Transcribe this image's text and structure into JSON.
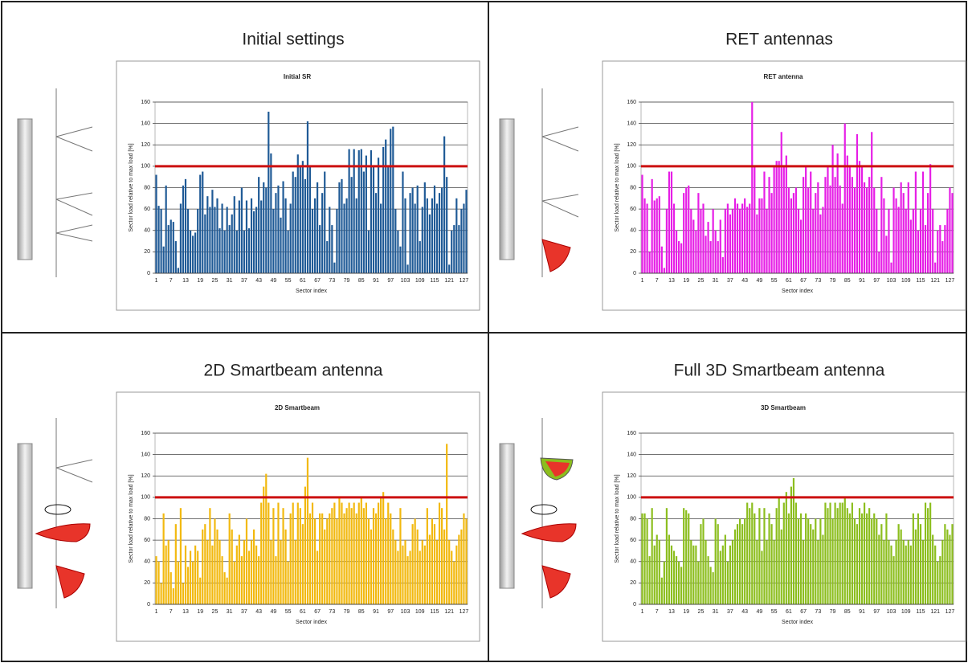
{
  "chart_data": [
    {
      "type": "bar",
      "heading": "Initial settings",
      "title": "Initial SR",
      "x_label": "Sector index",
      "y_label": "Sector load relative to max load [%]",
      "color": "#1f5a96",
      "grid": true,
      "threshold": 100,
      "threshold_color": "#cc1111",
      "ylim": [
        0,
        160
      ],
      "yticks": [
        0,
        20,
        40,
        60,
        80,
        100,
        120,
        140,
        160
      ],
      "categories": [
        "1",
        null,
        null,
        null,
        null,
        null,
        "7",
        null,
        null,
        null,
        null,
        null,
        "13",
        null,
        null,
        null,
        null,
        null,
        "19",
        null,
        null,
        null,
        null,
        null,
        "25",
        null,
        null,
        null,
        null,
        null,
        "31",
        null,
        null,
        null,
        null,
        null,
        "37",
        null,
        null,
        null,
        null,
        null,
        "43",
        null,
        null,
        null,
        null,
        null,
        "49",
        null,
        null,
        null,
        null,
        null,
        "55",
        null,
        null,
        null,
        null,
        null,
        "61",
        null,
        null,
        null,
        null,
        null,
        "67",
        null,
        null,
        null,
        null,
        null,
        "73",
        null,
        null,
        null,
        null,
        null,
        "79",
        null,
        null,
        null,
        null,
        null,
        "85",
        null,
        null,
        null,
        null,
        null,
        "91",
        null,
        null,
        null,
        null,
        null,
        "97",
        null,
        null,
        null,
        null,
        null,
        "103",
        null,
        null,
        null,
        null,
        null,
        "109",
        null,
        null,
        null,
        null,
        null,
        "115",
        null,
        null,
        null,
        null,
        null,
        "121",
        null,
        null,
        null,
        null,
        null,
        "127",
        null
      ],
      "values": [
        92,
        63,
        60,
        25,
        82,
        45,
        50,
        48,
        30,
        5,
        65,
        82,
        88,
        60,
        40,
        35,
        38,
        60,
        92,
        95,
        55,
        72,
        62,
        78,
        62,
        70,
        42,
        65,
        40,
        62,
        45,
        55,
        72,
        40,
        68,
        80,
        40,
        68,
        42,
        70,
        58,
        62,
        90,
        68,
        85,
        80,
        151,
        112,
        60,
        75,
        82,
        52,
        86,
        70,
        40,
        65,
        95,
        90,
        111,
        100,
        105,
        88,
        142,
        100,
        60,
        70,
        85,
        45,
        75,
        95,
        30,
        62,
        45,
        10,
        60,
        85,
        88,
        65,
        70,
        116,
        90,
        116,
        70,
        115,
        116,
        95,
        110,
        40,
        115,
        100,
        75,
        108,
        65,
        118,
        125,
        100,
        135,
        137,
        60,
        40,
        25,
        95,
        70,
        8,
        75,
        80,
        65,
        82,
        30,
        62,
        85,
        70,
        55,
        70,
        82,
        65,
        75,
        80,
        128,
        90,
        8,
        40,
        45,
        70,
        45,
        60,
        65,
        78
      ]
    },
    {
      "type": "bar",
      "heading": "RET antennas",
      "title": "RET antenna",
      "x_label": "Sector index",
      "y_label": "Sector load relative to max load [%]",
      "color": "#e61ee6",
      "grid": true,
      "threshold": 100,
      "threshold_color": "#cc1111",
      "ylim": [
        0,
        160
      ],
      "yticks": [
        0,
        20,
        40,
        60,
        80,
        100,
        120,
        140,
        160
      ],
      "categories": [
        "1",
        null,
        null,
        null,
        null,
        null,
        "7",
        null,
        null,
        null,
        null,
        null,
        "13",
        null,
        null,
        null,
        null,
        null,
        "19",
        null,
        null,
        null,
        null,
        null,
        "25",
        null,
        null,
        null,
        null,
        null,
        "31",
        null,
        null,
        null,
        null,
        null,
        "37",
        null,
        null,
        null,
        null,
        null,
        "43",
        null,
        null,
        null,
        null,
        null,
        "49",
        null,
        null,
        null,
        null,
        null,
        "55",
        null,
        null,
        null,
        null,
        null,
        "61",
        null,
        null,
        null,
        null,
        null,
        "67",
        null,
        null,
        null,
        null,
        null,
        "73",
        null,
        null,
        null,
        null,
        null,
        "79",
        null,
        null,
        null,
        null,
        null,
        "85",
        null,
        null,
        null,
        null,
        null,
        "91",
        null,
        null,
        null,
        null,
        null,
        "97",
        null,
        null,
        null,
        null,
        null,
        "103",
        null,
        null,
        null,
        null,
        null,
        "109",
        null,
        null,
        null,
        null,
        null,
        "115",
        null,
        null,
        null,
        null,
        null,
        "121",
        null,
        null,
        null,
        null,
        null,
        "127",
        null
      ],
      "values": [
        92,
        70,
        65,
        20,
        88,
        68,
        70,
        72,
        25,
        5,
        60,
        95,
        95,
        65,
        40,
        30,
        28,
        75,
        80,
        82,
        60,
        50,
        40,
        75,
        60,
        65,
        35,
        48,
        30,
        60,
        40,
        30,
        50,
        15,
        60,
        65,
        55,
        60,
        70,
        65,
        60,
        65,
        70,
        62,
        65,
        160,
        100,
        55,
        70,
        70,
        95,
        60,
        90,
        75,
        100,
        105,
        105,
        132,
        100,
        110,
        80,
        70,
        75,
        80,
        60,
        50,
        90,
        100,
        80,
        95,
        60,
        75,
        85,
        55,
        62,
        90,
        100,
        82,
        120,
        90,
        112,
        82,
        65,
        140,
        110,
        100,
        90,
        80,
        130,
        105,
        100,
        85,
        80,
        90,
        132,
        80,
        60,
        20,
        90,
        70,
        35,
        60,
        10,
        80,
        70,
        62,
        85,
        75,
        60,
        85,
        50,
        60,
        95,
        40,
        60,
        95,
        45,
        75,
        102,
        60,
        10,
        40,
        45,
        30,
        45,
        60,
        80,
        75
      ]
    },
    {
      "type": "bar",
      "heading": "2D Smartbeam antenna",
      "title": "2D Smartbeam",
      "x_label": "Sector index",
      "y_label": "Sector load relative to max load [%]",
      "color": "#f2b90f",
      "grid": true,
      "threshold": 100,
      "threshold_color": "#cc1111",
      "ylim": [
        0,
        160
      ],
      "yticks": [
        0,
        20,
        40,
        60,
        80,
        100,
        120,
        140,
        160
      ],
      "categories": [
        "1",
        null,
        null,
        null,
        null,
        null,
        "7",
        null,
        null,
        null,
        null,
        null,
        "13",
        null,
        null,
        null,
        null,
        null,
        "19",
        null,
        null,
        null,
        null,
        null,
        "25",
        null,
        null,
        null,
        null,
        null,
        "31",
        null,
        null,
        null,
        null,
        null,
        "37",
        null,
        null,
        null,
        null,
        null,
        "43",
        null,
        null,
        null,
        null,
        null,
        "49",
        null,
        null,
        null,
        null,
        null,
        "55",
        null,
        null,
        null,
        null,
        null,
        "61",
        null,
        null,
        null,
        null,
        null,
        "67",
        null,
        null,
        null,
        null,
        null,
        "73",
        null,
        null,
        null,
        null,
        null,
        "79",
        null,
        null,
        null,
        null,
        null,
        "85",
        null,
        null,
        null,
        null,
        null,
        "91",
        null,
        null,
        null,
        null,
        null,
        "97",
        null,
        null,
        null,
        null,
        null,
        "103",
        null,
        null,
        null,
        null,
        null,
        "109",
        null,
        null,
        null,
        null,
        null,
        "115",
        null,
        null,
        null,
        null,
        null,
        "121",
        null,
        null,
        null,
        null,
        null,
        "127",
        null
      ],
      "values": [
        45,
        40,
        20,
        85,
        55,
        60,
        30,
        15,
        75,
        40,
        90,
        20,
        55,
        35,
        50,
        40,
        55,
        50,
        25,
        70,
        75,
        60,
        90,
        55,
        80,
        70,
        60,
        45,
        30,
        25,
        85,
        70,
        40,
        55,
        65,
        45,
        60,
        80,
        50,
        60,
        70,
        55,
        45,
        95,
        110,
        122,
        95,
        60,
        90,
        45,
        95,
        60,
        90,
        70,
        40,
        85,
        95,
        60,
        95,
        90,
        75,
        110,
        137,
        85,
        95,
        80,
        50,
        85,
        85,
        70,
        80,
        85,
        90,
        95,
        80,
        100,
        95,
        85,
        90,
        95,
        90,
        95,
        85,
        95,
        100,
        90,
        95,
        80,
        70,
        90,
        85,
        95,
        100,
        105,
        80,
        95,
        85,
        70,
        60,
        50,
        90,
        55,
        60,
        45,
        50,
        75,
        80,
        70,
        50,
        60,
        55,
        90,
        65,
        80,
        75,
        60,
        95,
        90,
        70,
        150,
        60,
        50,
        40,
        55,
        65,
        70,
        85,
        80
      ]
    },
    {
      "type": "bar",
      "heading": "Full 3D Smartbeam antenna",
      "title": "3D Smartbeam",
      "x_label": "Sector index",
      "y_label": "Sector load relative to max load [%]",
      "color": "#8cbe1e",
      "grid": true,
      "threshold": 100,
      "threshold_color": "#cc1111",
      "ylim": [
        0,
        160
      ],
      "yticks": [
        0,
        20,
        40,
        60,
        80,
        100,
        120,
        140,
        160
      ],
      "categories": [
        "1",
        null,
        null,
        null,
        null,
        null,
        "7",
        null,
        null,
        null,
        null,
        null,
        "13",
        null,
        null,
        null,
        null,
        null,
        "19",
        null,
        null,
        null,
        null,
        null,
        "25",
        null,
        null,
        null,
        null,
        null,
        "31",
        null,
        null,
        null,
        null,
        null,
        "37",
        null,
        null,
        null,
        null,
        null,
        "43",
        null,
        null,
        null,
        null,
        null,
        "49",
        null,
        null,
        null,
        null,
        null,
        "55",
        null,
        null,
        null,
        null,
        null,
        "61",
        null,
        null,
        null,
        null,
        null,
        "67",
        null,
        null,
        null,
        null,
        null,
        "73",
        null,
        null,
        null,
        null,
        null,
        "79",
        null,
        null,
        null,
        null,
        null,
        "85",
        null,
        null,
        null,
        null,
        null,
        "91",
        null,
        null,
        null,
        null,
        null,
        "97",
        null,
        null,
        null,
        null,
        null,
        "103",
        null,
        null,
        null,
        null,
        null,
        "109",
        null,
        null,
        null,
        null,
        null,
        "115",
        null,
        null,
        null,
        null,
        null,
        "121",
        null,
        null,
        null,
        null,
        null,
        "127",
        null
      ],
      "values": [
        85,
        85,
        80,
        45,
        90,
        55,
        65,
        60,
        25,
        40,
        90,
        65,
        55,
        50,
        45,
        40,
        35,
        90,
        88,
        85,
        60,
        55,
        55,
        40,
        75,
        80,
        60,
        45,
        35,
        30,
        80,
        75,
        50,
        55,
        65,
        40,
        55,
        60,
        70,
        75,
        80,
        75,
        80,
        95,
        90,
        95,
        85,
        60,
        90,
        50,
        90,
        60,
        85,
        75,
        60,
        90,
        100,
        70,
        95,
        105,
        85,
        110,
        118,
        95,
        80,
        85,
        60,
        85,
        80,
        75,
        70,
        80,
        60,
        80,
        65,
        95,
        90,
        95,
        80,
        95,
        90,
        95,
        95,
        100,
        90,
        85,
        95,
        80,
        75,
        90,
        85,
        95,
        85,
        90,
        80,
        85,
        80,
        65,
        75,
        60,
        85,
        60,
        55,
        45,
        60,
        75,
        70,
        60,
        55,
        60,
        55,
        85,
        70,
        85,
        75,
        60,
        95,
        90,
        95,
        65,
        55,
        40,
        45,
        60,
        75,
        70,
        65,
        75
      ]
    }
  ]
}
